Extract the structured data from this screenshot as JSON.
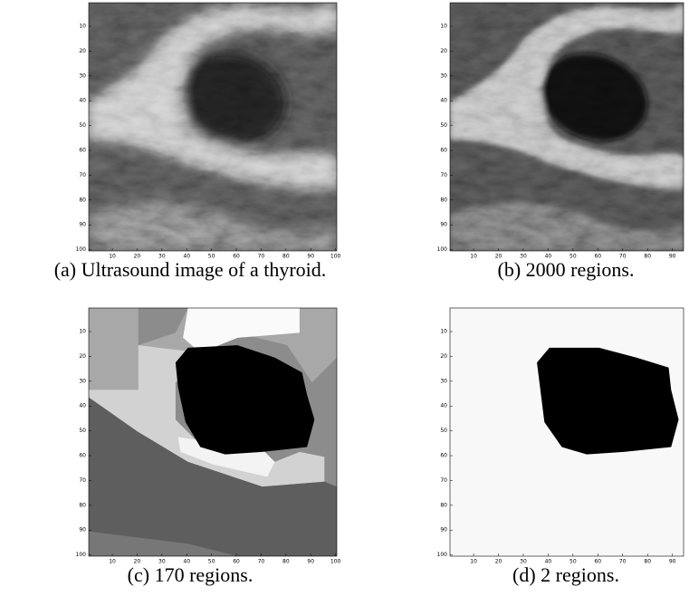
{
  "panels": [
    {
      "caption": "(a) Ultrasound image of a thyroid.",
      "xlim": [
        0.5,
        100.5
      ],
      "ylim": [
        0.5,
        100.5
      ],
      "xticks": [
        10,
        20,
        30,
        40,
        50,
        60,
        70,
        80,
        90,
        100
      ],
      "yticks": [
        10,
        20,
        30,
        40,
        50,
        60,
        70,
        80,
        90,
        100
      ]
    },
    {
      "caption": "(b) 2000 regions.",
      "xlim": [
        0.5,
        94.5
      ],
      "ylim": [
        0.5,
        100.5
      ],
      "xticks": [
        10,
        20,
        30,
        40,
        50,
        60,
        70,
        80,
        90
      ],
      "yticks": [
        10,
        20,
        30,
        40,
        50,
        60,
        70,
        80,
        90,
        100
      ]
    },
    {
      "caption": "(c) 170 regions.",
      "xlim": [
        0.5,
        100.5
      ],
      "ylim": [
        0.5,
        100.5
      ],
      "xticks": [
        10,
        20,
        30,
        40,
        50,
        60,
        70,
        80,
        90,
        100
      ],
      "yticks": [
        10,
        20,
        30,
        40,
        50,
        60,
        70,
        80,
        90,
        100
      ]
    },
    {
      "caption": "(d) 2 regions.",
      "xlim": [
        0.5,
        94.5
      ],
      "ylim": [
        0.5,
        100.5
      ],
      "xticks": [
        10,
        20,
        30,
        40,
        50,
        60,
        70,
        80,
        90
      ],
      "yticks": [
        10,
        20,
        30,
        40,
        50,
        60,
        70,
        80,
        90,
        100
      ]
    }
  ]
}
